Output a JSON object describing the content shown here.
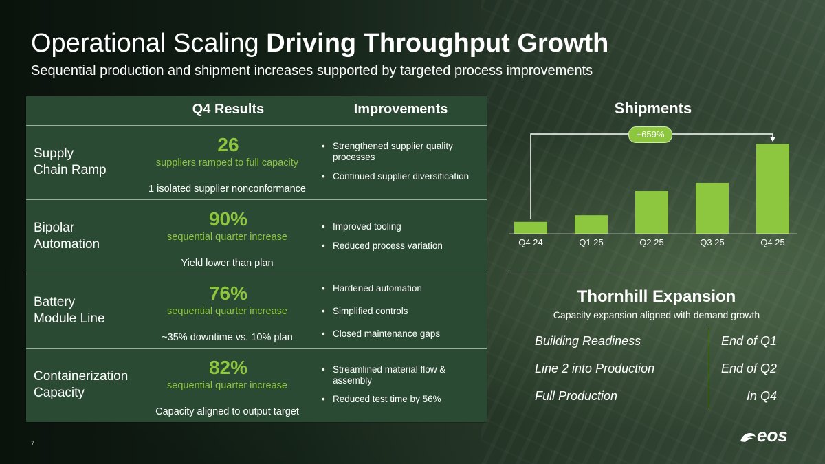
{
  "slide": {
    "title_light": "Operational Scaling ",
    "title_bold": "Driving Throughput Growth",
    "subtitle": "Sequential production and shipment increases supported by targeted process improvements",
    "page_number": "7",
    "logo_text": "eos"
  },
  "table": {
    "headers": {
      "results": "Q4 Results",
      "improvements": "Improvements"
    },
    "rows": [
      {
        "label_line1": "Supply",
        "label_line2": "Chain Ramp",
        "number": "26",
        "metric": "suppliers ramped to full capacity",
        "note": "1 isolated supplier nonconformance",
        "improvements": [
          "Strengthened supplier quality processes",
          "Continued supplier diversification"
        ]
      },
      {
        "label_line1": "Bipolar",
        "label_line2": "Automation",
        "number": "90%",
        "metric": "sequential quarter increase",
        "note": "Yield lower than plan",
        "improvements": [
          "Improved tooling",
          "Reduced  process variation"
        ]
      },
      {
        "label_line1": "Battery",
        "label_line2": "Module Line",
        "number": "76%",
        "metric": "sequential quarter increase",
        "note": "~35% downtime vs. 10% plan",
        "improvements": [
          "Hardened automation",
          "Simplified controls",
          "Closed maintenance gaps"
        ]
      },
      {
        "label_line1": "Containerization",
        "label_line2": "Capacity",
        "number": "82%",
        "metric": "sequential quarter increase",
        "note": "Capacity aligned to output target",
        "improvements": [
          "Streamlined material flow & assembly",
          "Reduced test time by 56%"
        ]
      }
    ]
  },
  "chart_data": {
    "type": "bar",
    "title": "Shipments",
    "categories": [
      "Q4 24",
      "Q1 25",
      "Q2 25",
      "Q3 25",
      "Q4 25"
    ],
    "values": [
      1.0,
      1.56,
      3.6,
      4.3,
      7.59
    ],
    "annotation": "+659%",
    "bar_color": "#8dc63f",
    "ylim": [
      0,
      8
    ]
  },
  "expansion": {
    "title": "Thornhill Expansion",
    "subtitle": "Capacity expansion aligned with demand growth",
    "items": [
      {
        "label": "Building Readiness",
        "value": "End of Q1"
      },
      {
        "label": "Line 2 into Production",
        "value": "End of Q2"
      },
      {
        "label": "Full Production",
        "value": "In Q4"
      }
    ]
  },
  "colors": {
    "accent": "#8dc63f",
    "table_bg": "#2b4a33"
  }
}
